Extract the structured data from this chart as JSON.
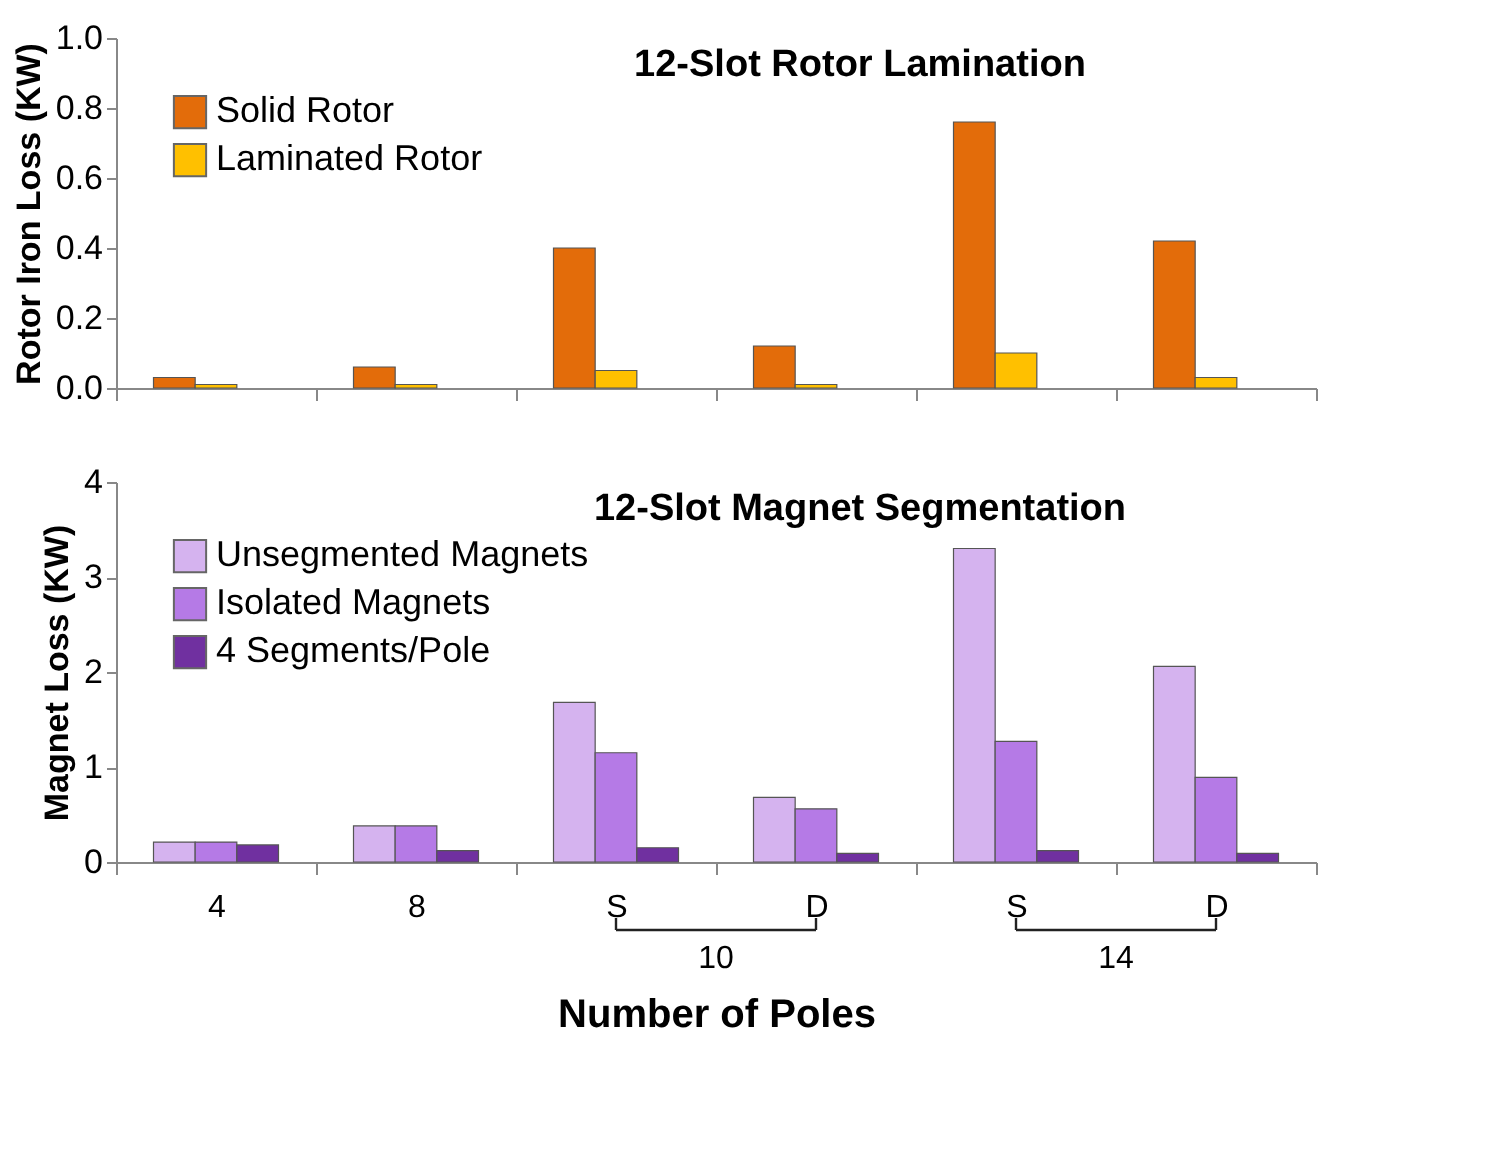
{
  "chart_data": [
    {
      "type": "bar",
      "title": "12-Slot Rotor Lamination",
      "ylabel": "Rotor Iron Loss (KW)",
      "categories": [
        "4",
        "8",
        "S",
        "D",
        "S",
        "D"
      ],
      "series": [
        {
          "name": "Solid Rotor",
          "color": "#e36c0a",
          "values": [
            0.03,
            0.06,
            0.4,
            0.12,
            0.76,
            0.42
          ]
        },
        {
          "name": "Laminated Rotor",
          "color": "#ffc000",
          "values": [
            0.01,
            0.01,
            0.05,
            0.01,
            0.1,
            0.03
          ]
        }
      ],
      "ylim": [
        0,
        1.0
      ],
      "yticks": [
        {
          "value": 0,
          "label": "0.0"
        },
        0.2,
        0.4,
        0.6,
        0.8,
        {
          "value": 1.0,
          "label": "1.0"
        }
      ],
      "grid": false,
      "legend": "top left",
      "tick_labels": "y"
    },
    {
      "type": "bar",
      "title": "12-Slot Magnet  Segmentation",
      "ylabel": "Magnet Loss (KW)",
      "xlabel": "Number of Poles",
      "categories": [
        "4",
        "8",
        "S",
        "D",
        "S",
        "D"
      ],
      "series": [
        {
          "name": "Unsegmented Magnets",
          "color": "#d5b3ef",
          "values": [
            0.21,
            0.38,
            1.68,
            0.68,
            3.3,
            2.06
          ]
        },
        {
          "name": "Isolated Magnets",
          "color": "#b57ae6",
          "values": [
            0.21,
            0.38,
            1.15,
            0.56,
            1.27,
            0.89
          ]
        },
        {
          "name": "4 Segments/Pole",
          "color": "#7030a0",
          "values": [
            0.18,
            0.12,
            0.15,
            0.09,
            0.12,
            0.09
          ]
        }
      ],
      "ylim": [
        0,
        4
      ],
      "yticks": [
        0,
        1,
        2,
        3,
        4
      ],
      "grid": false,
      "legend": "top left",
      "annotations": [
        "10",
        "14"
      ]
    }
  ]
}
